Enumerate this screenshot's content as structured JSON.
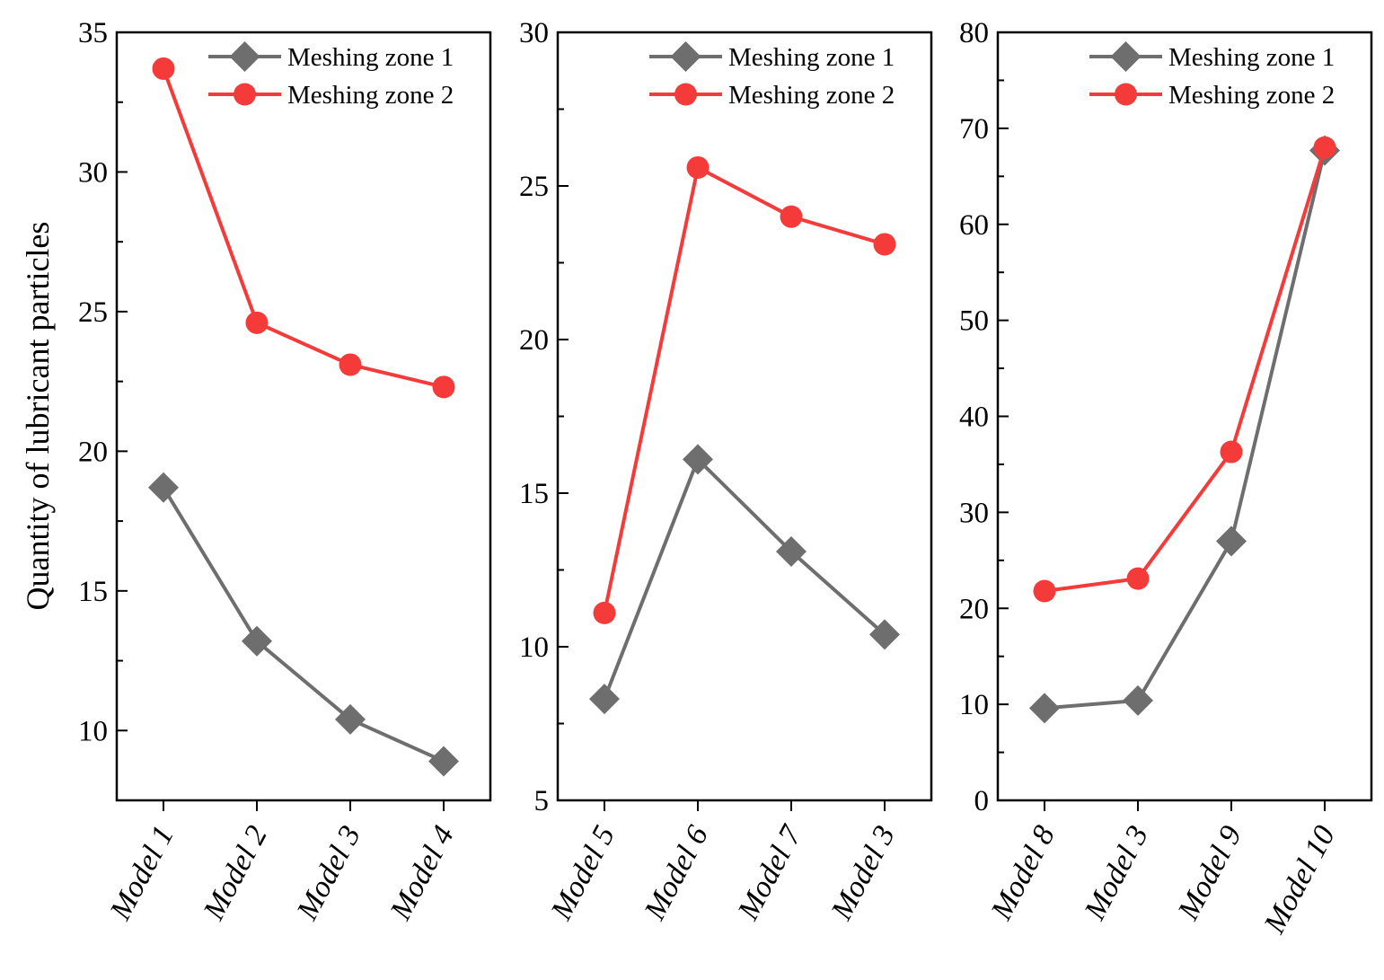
{
  "figure": {
    "ylabel": "Quantity of lubricant particles"
  },
  "colors": {
    "zone1": "#6e6e6e",
    "zone2": "#f53a3a",
    "axis": "#000000"
  },
  "chart_data": [
    {
      "type": "line",
      "title": "",
      "xlabel": "",
      "ylabel": "Quantity of lubricant particles",
      "categories": [
        "Model 1",
        "Model 2",
        "Model 3",
        "Model 4"
      ],
      "ylim": [
        7.5,
        35
      ],
      "yticks": [
        10,
        15,
        20,
        25,
        30,
        35
      ],
      "legend": "top-right",
      "series": [
        {
          "name": "Meshing zone 1",
          "marker": "diamond",
          "values": [
            18.7,
            13.2,
            10.4,
            8.9
          ]
        },
        {
          "name": "Meshing zone 2",
          "marker": "circle",
          "values": [
            33.7,
            24.6,
            23.1,
            22.3
          ]
        }
      ]
    },
    {
      "type": "line",
      "title": "",
      "xlabel": "",
      "ylabel": "",
      "categories": [
        "Model 5",
        "Model 6",
        "Model 7",
        "Model 3"
      ],
      "ylim": [
        5,
        30
      ],
      "yticks": [
        5,
        10,
        15,
        20,
        25,
        30
      ],
      "legend": "top-right",
      "series": [
        {
          "name": "Meshing zone 1",
          "marker": "diamond",
          "values": [
            8.3,
            16.1,
            13.1,
            10.4
          ]
        },
        {
          "name": "Meshing zone 2",
          "marker": "circle",
          "values": [
            11.1,
            25.6,
            24.0,
            23.1
          ]
        }
      ]
    },
    {
      "type": "line",
      "title": "",
      "xlabel": "",
      "ylabel": "",
      "categories": [
        "Model 8",
        "Model 3",
        "Model 9",
        "Model 10"
      ],
      "ylim": [
        0,
        80
      ],
      "yticks": [
        0,
        10,
        20,
        30,
        40,
        50,
        60,
        70,
        80
      ],
      "legend": "top-right",
      "series": [
        {
          "name": "Meshing zone 1",
          "marker": "diamond",
          "values": [
            9.6,
            10.4,
            27.0,
            67.7
          ]
        },
        {
          "name": "Meshing zone 2",
          "marker": "circle",
          "values": [
            21.8,
            23.1,
            36.3,
            68.0
          ]
        }
      ]
    }
  ]
}
